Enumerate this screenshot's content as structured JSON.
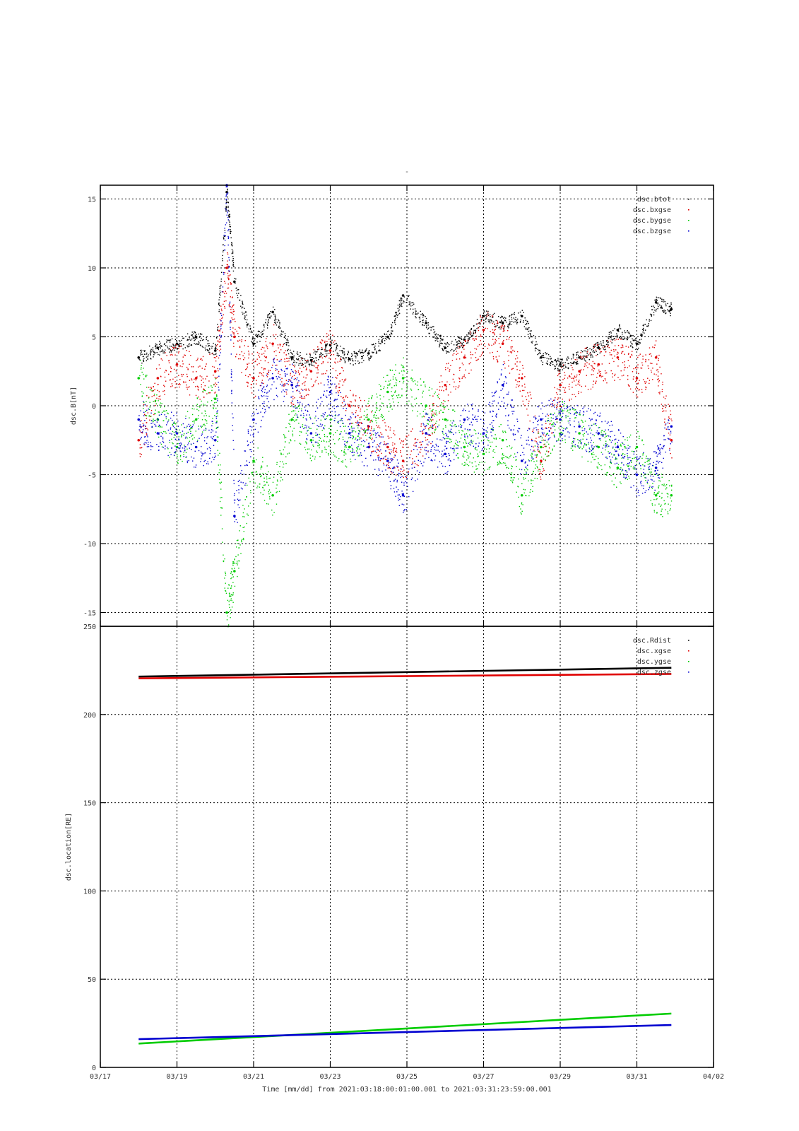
{
  "page_mark": "-",
  "chart_data": [
    {
      "type": "scatter",
      "ylabel": "dsc.B[nT]",
      "ylim": [
        -16,
        16
      ],
      "yticks": [
        -15,
        -10,
        -5,
        0,
        5,
        10,
        15
      ],
      "xlim": [
        "03/17",
        "04/02"
      ],
      "grid": true,
      "legend_position": "top-right",
      "series": [
        {
          "name": "dsc.btot",
          "color": "#000000",
          "x": [
            "03/18",
            "03/18.5",
            "03/19",
            "03/19.5",
            "03/20",
            "03/20.3",
            "03/20.5",
            "03/21",
            "03/21.5",
            "03/22",
            "03/22.5",
            "03/23",
            "03/23.5",
            "03/24",
            "03/24.5",
            "03/24.9",
            "03/25.5",
            "03/26",
            "03/26.5",
            "03/27",
            "03/27.5",
            "03/28",
            "03/28.5",
            "03/29",
            "03/29.5",
            "03/30",
            "03/30.5",
            "03/31",
            "03/31.5",
            "03/31.9"
          ],
          "y": [
            3.5,
            4.2,
            4.5,
            5.0,
            4.0,
            15.5,
            9.0,
            4.5,
            6.8,
            3.5,
            3.3,
            4.4,
            3.4,
            3.8,
            5.0,
            8.0,
            6.0,
            4.2,
            4.8,
            6.5,
            6.0,
            6.5,
            3.5,
            3.0,
            3.5,
            4.2,
            5.5,
            4.5,
            7.5,
            7.0
          ]
        },
        {
          "name": "dsc.bxgse",
          "color": "#e00000",
          "x": [
            "03/18",
            "03/18.5",
            "03/19",
            "03/19.5",
            "03/20",
            "03/20.3",
            "03/20.5",
            "03/21",
            "03/21.5",
            "03/22",
            "03/22.5",
            "03/23",
            "03/23.5",
            "03/24",
            "03/24.5",
            "03/24.9",
            "03/25.5",
            "03/26",
            "03/26.5",
            "03/27",
            "03/27.5",
            "03/28",
            "03/28.5",
            "03/29",
            "03/29.5",
            "03/30",
            "03/30.5",
            "03/31",
            "03/31.5",
            "03/31.9"
          ],
          "y": [
            -2.5,
            2.0,
            3.0,
            2.0,
            2.5,
            10.0,
            5.0,
            2.0,
            4.5,
            1.5,
            2.5,
            4.0,
            0.0,
            -1.5,
            -3.0,
            -4.0,
            -2.0,
            1.5,
            3.5,
            5.5,
            4.5,
            2.0,
            -4.0,
            1.5,
            2.5,
            3.0,
            3.5,
            2.0,
            3.5,
            -2.5
          ]
        },
        {
          "name": "dsc.bygse",
          "color": "#00cc00",
          "x": [
            "03/18",
            "03/18.5",
            "03/19",
            "03/19.5",
            "03/20",
            "03/20.3",
            "03/20.5",
            "03/21",
            "03/21.5",
            "03/22",
            "03/22.5",
            "03/23",
            "03/23.5",
            "03/24",
            "03/24.5",
            "03/24.9",
            "03/25.5",
            "03/26",
            "03/26.5",
            "03/27",
            "03/27.5",
            "03/28",
            "03/28.5",
            "03/29",
            "03/29.5",
            "03/30",
            "03/30.5",
            "03/31",
            "03/31.5",
            "03/31.9"
          ],
          "y": [
            2.0,
            -1.0,
            -3.0,
            -1.0,
            0.5,
            -15.0,
            -12.0,
            -4.0,
            -6.5,
            -1.0,
            -2.5,
            -2.0,
            -3.0,
            -1.0,
            1.0,
            2.0,
            0.0,
            -1.0,
            -3.0,
            -3.5,
            -2.5,
            -6.5,
            -3.0,
            -1.0,
            -2.0,
            -3.0,
            -4.5,
            -3.0,
            -6.5,
            -6.5
          ]
        },
        {
          "name": "dsc.bzgse",
          "color": "#0000d0",
          "x": [
            "03/18",
            "03/18.5",
            "03/19",
            "03/19.5",
            "03/20",
            "03/20.3",
            "03/20.5",
            "03/21",
            "03/21.5",
            "03/22",
            "03/22.5",
            "03/23",
            "03/23.5",
            "03/24",
            "03/24.5",
            "03/24.9",
            "03/25.5",
            "03/26",
            "03/26.5",
            "03/27",
            "03/27.5",
            "03/28",
            "03/28.5",
            "03/29",
            "03/29.5",
            "03/30",
            "03/30.5",
            "03/31",
            "03/31.5",
            "03/31.9"
          ],
          "y": [
            -1.0,
            -2.0,
            -2.0,
            -3.0,
            -2.5,
            16.0,
            -8.0,
            -1.0,
            2.0,
            1.5,
            -2.0,
            1.0,
            -2.0,
            -3.0,
            -4.0,
            -6.5,
            -2.0,
            -3.5,
            -1.0,
            -2.0,
            1.5,
            -4.0,
            -1.0,
            -1.0,
            -1.5,
            -2.0,
            -3.0,
            -5.0,
            -4.5,
            -1.5
          ]
        }
      ]
    },
    {
      "type": "line",
      "ylabel": "dsc.location[RE]",
      "xlabel": "Time [mm/dd]  from 2021:03:18:00:01:00.001  to  2021:03:31:23:59:00.001",
      "ylim": [
        0,
        250
      ],
      "yticks": [
        0,
        50,
        100,
        150,
        200,
        250
      ],
      "xlim": [
        "03/17",
        "04/02"
      ],
      "xticks": [
        "03/17",
        "03/19",
        "03/21",
        "03/23",
        "03/25",
        "03/27",
        "03/29",
        "03/31",
        "04/02"
      ],
      "grid": true,
      "legend_position": "top-right",
      "series": [
        {
          "name": "dsc.Rdist",
          "color": "#000000",
          "x": [
            "03/18",
            "03/31.9"
          ],
          "y": [
            221.5,
            226.5
          ]
        },
        {
          "name": "dsc.xgse",
          "color": "#e00000",
          "x": [
            "03/18",
            "03/31.9"
          ],
          "y": [
            220.5,
            223.0
          ]
        },
        {
          "name": "dsc.ygse",
          "color": "#00cc00",
          "x": [
            "03/18",
            "03/31.9"
          ],
          "y": [
            13.5,
            30.5
          ]
        },
        {
          "name": "dsc.zgse",
          "color": "#0000d0",
          "x": [
            "03/18",
            "03/31.9"
          ],
          "y": [
            16.0,
            24.0
          ]
        }
      ]
    }
  ]
}
